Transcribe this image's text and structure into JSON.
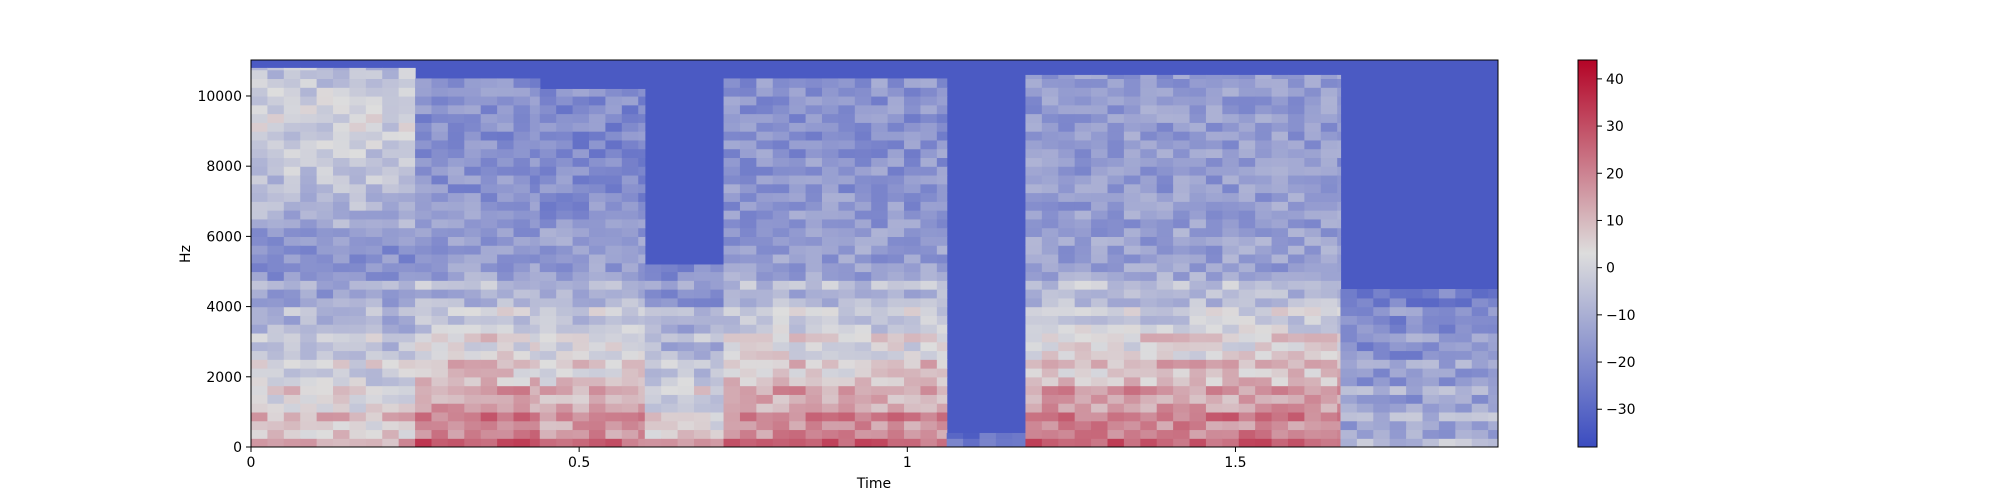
{
  "chart_data": {
    "type": "heatmap",
    "title": "",
    "xlabel": "Time",
    "ylabel": "Hz",
    "xlim": [
      0,
      1.9
    ],
    "ylim": [
      0,
      11025
    ],
    "xticks": [
      {
        "value": 0,
        "label": "0"
      },
      {
        "value": 0.5,
        "label": "0.5"
      },
      {
        "value": 1,
        "label": "1"
      },
      {
        "value": 1.5,
        "label": "1.5"
      }
    ],
    "yticks": [
      {
        "value": 0,
        "label": "0"
      },
      {
        "value": 2000,
        "label": "2000"
      },
      {
        "value": 4000,
        "label": "4000"
      },
      {
        "value": 6000,
        "label": "6000"
      },
      {
        "value": 8000,
        "label": "8000"
      },
      {
        "value": 10000,
        "label": "10000"
      }
    ],
    "colormap": "coolwarm",
    "colorbar": {
      "range": [
        -38,
        44
      ],
      "ticks": [
        {
          "value": 40,
          "label": "40"
        },
        {
          "value": 30,
          "label": "30"
        },
        {
          "value": 20,
          "label": "20"
        },
        {
          "value": 10,
          "label": "10"
        },
        {
          "value": 0,
          "label": "0"
        },
        {
          "value": -10,
          "label": "−10"
        },
        {
          "value": -20,
          "label": "−20"
        },
        {
          "value": -30,
          "label": "−30"
        }
      ]
    },
    "segments": [
      {
        "t0": 0.0,
        "t1": 0.25,
        "fmax": 10800,
        "low": -18,
        "high": 8,
        "hfboost": 18
      },
      {
        "t0": 0.25,
        "t1": 0.44,
        "fmax": 10500,
        "low": -15,
        "high": 22,
        "hfboost": -4
      },
      {
        "t0": 0.44,
        "t1": 0.6,
        "fmax": 10200,
        "low": -15,
        "high": 18,
        "hfboost": -6
      },
      {
        "t0": 0.6,
        "t1": 0.72,
        "fmax": 5200,
        "low": -22,
        "high": 6,
        "hfboost": -10
      },
      {
        "t0": 0.72,
        "t1": 1.06,
        "fmax": 10500,
        "low": -15,
        "high": 20,
        "hfboost": -3
      },
      {
        "t0": 1.06,
        "t1": 1.18,
        "fmax": 400,
        "low": -34,
        "high": -28,
        "hfboost": 0
      },
      {
        "t0": 1.18,
        "t1": 1.66,
        "fmax": 10600,
        "low": -14,
        "high": 22,
        "hfboost": -2
      },
      {
        "t0": 1.66,
        "t1": 1.9,
        "fmax": 4500,
        "low": -26,
        "high": -12,
        "hfboost": -6
      }
    ],
    "colors": {
      "cool": "#3b4cc0",
      "neutral": "#dddddd",
      "warm": "#b40426"
    }
  }
}
